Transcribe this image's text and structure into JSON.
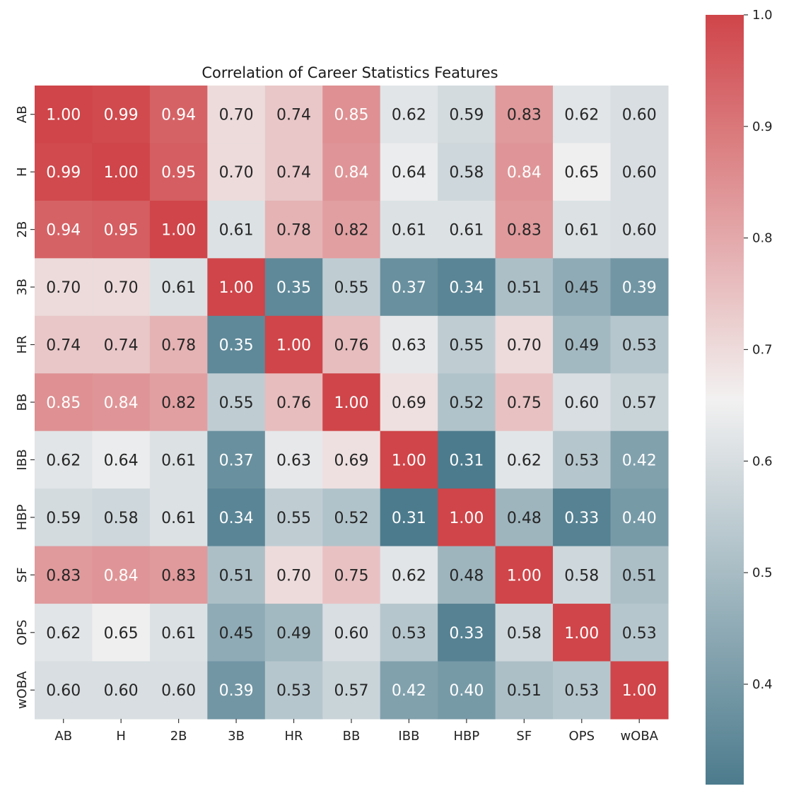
{
  "chart_data": {
    "type": "heatmap",
    "title": "Correlation of Career Statistics Features",
    "xlabel": "",
    "ylabel": "",
    "x_categories": [
      "AB",
      "H",
      "2B",
      "3B",
      "HR",
      "BB",
      "IBB",
      "HBP",
      "SF",
      "OPS",
      "wOBA"
    ],
    "y_categories": [
      "AB",
      "H",
      "2B",
      "3B",
      "HR",
      "BB",
      "IBB",
      "HBP",
      "SF",
      "OPS",
      "wOBA"
    ],
    "values": [
      [
        1.0,
        0.99,
        0.94,
        0.7,
        0.74,
        0.85,
        0.62,
        0.59,
        0.83,
        0.62,
        0.6
      ],
      [
        0.99,
        1.0,
        0.95,
        0.7,
        0.74,
        0.84,
        0.64,
        0.58,
        0.84,
        0.65,
        0.6
      ],
      [
        0.94,
        0.95,
        1.0,
        0.61,
        0.78,
        0.82,
        0.61,
        0.61,
        0.83,
        0.61,
        0.6
      ],
      [
        0.7,
        0.7,
        0.61,
        1.0,
        0.35,
        0.55,
        0.37,
        0.34,
        0.51,
        0.45,
        0.39
      ],
      [
        0.74,
        0.74,
        0.78,
        0.35,
        1.0,
        0.76,
        0.63,
        0.55,
        0.7,
        0.49,
        0.53
      ],
      [
        0.85,
        0.84,
        0.82,
        0.55,
        0.76,
        1.0,
        0.69,
        0.52,
        0.75,
        0.6,
        0.57
      ],
      [
        0.62,
        0.64,
        0.61,
        0.37,
        0.63,
        0.69,
        1.0,
        0.31,
        0.62,
        0.53,
        0.42
      ],
      [
        0.59,
        0.58,
        0.61,
        0.34,
        0.55,
        0.52,
        0.31,
        1.0,
        0.48,
        0.33,
        0.4
      ],
      [
        0.83,
        0.84,
        0.83,
        0.51,
        0.7,
        0.75,
        0.62,
        0.48,
        1.0,
        0.58,
        0.51
      ],
      [
        0.62,
        0.65,
        0.61,
        0.45,
        0.49,
        0.6,
        0.53,
        0.33,
        0.58,
        1.0,
        0.53
      ],
      [
        0.6,
        0.6,
        0.6,
        0.39,
        0.53,
        0.57,
        0.42,
        0.4,
        0.51,
        0.53,
        1.0
      ]
    ],
    "value_format": "0.00",
    "colorbar": {
      "range": [
        0.31,
        1.0
      ],
      "ticks": [
        0.4,
        0.5,
        0.6,
        0.7,
        0.8,
        0.9,
        1.0
      ],
      "tick_labels": [
        "0.4",
        "0.5",
        "0.6",
        "0.7",
        "0.8",
        "0.9",
        "1.0"
      ],
      "colors": {
        "low": "#4c7b8d",
        "mid": "#f2f1f1",
        "high": "#cf4549"
      }
    },
    "grid": false,
    "legend": "colorbar-right"
  }
}
